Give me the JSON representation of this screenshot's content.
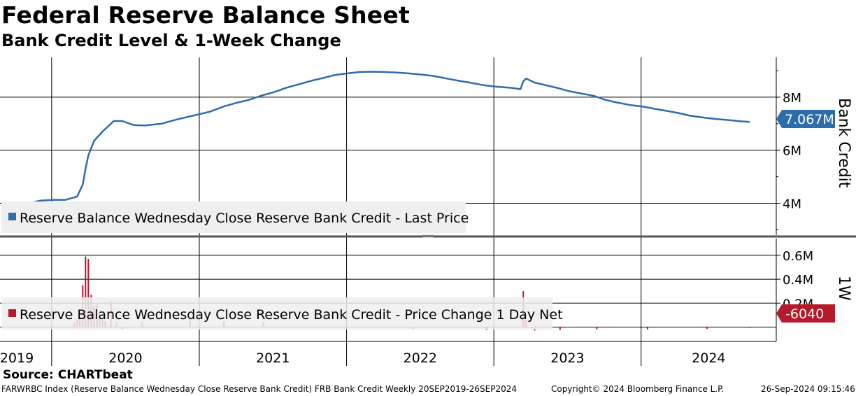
{
  "header": {
    "title": "Federal Reserve Balance Sheet",
    "subtitle": "Bank Credit Level & 1-Week Change"
  },
  "footer": {
    "source": "Source: CHARTbeat",
    "description": "FARWRBC Index (Reserve Balance Wednesday Close Reserve Bank Credit) FRB Bank Credit  Weekly 20SEP2019-26SEP2024",
    "copyright": "Copyright© 2024 Bloomberg Finance L.P.",
    "timestamp": "26-Sep-2024 09:15:46"
  },
  "colors": {
    "level_line": "#2e6dab",
    "change_bars": "#b5192a",
    "legend_box": "#efefef",
    "gridline": "#000000"
  },
  "chart_data": [
    {
      "type": "line",
      "panel": "top",
      "title": "",
      "xlabel": "",
      "ylabel": "Bank Credit",
      "ylim": [
        2800000,
        9500000
      ],
      "yticks": [
        4000000,
        6000000,
        8000000
      ],
      "ytick_labels": [
        "4M",
        "6M",
        "8M"
      ],
      "x_range": [
        "2019-09-20",
        "2024-09-26"
      ],
      "grid": true,
      "legend_placement": "bottom-left",
      "last_value_label": "7.067M",
      "series": [
        {
          "name": "Reserve Balance Wednesday Close Reserve Bank Credit - Last Price",
          "points": [
            [
              "2019-09-20",
              3870000
            ],
            [
              "2019-10-09",
              3940000
            ],
            [
              "2019-11-06",
              4000000
            ],
            [
              "2019-12-04",
              4100000
            ],
            [
              "2020-01-08",
              4130000
            ],
            [
              "2020-02-05",
              4130000
            ],
            [
              "2020-03-04",
              4250000
            ],
            [
              "2020-03-18",
              4700000
            ],
            [
              "2020-03-25",
              5300000
            ],
            [
              "2020-04-01",
              5800000
            ],
            [
              "2020-04-15",
              6350000
            ],
            [
              "2020-05-06",
              6700000
            ],
            [
              "2020-06-03",
              7100000
            ],
            [
              "2020-06-24",
              7100000
            ],
            [
              "2020-07-22",
              6950000
            ],
            [
              "2020-08-19",
              6930000
            ],
            [
              "2020-09-30",
              7000000
            ],
            [
              "2020-11-04",
              7150000
            ],
            [
              "2020-12-16",
              7300000
            ],
            [
              "2021-01-27",
              7450000
            ],
            [
              "2021-03-03",
              7650000
            ],
            [
              "2021-04-07",
              7800000
            ],
            [
              "2021-05-05",
              7900000
            ],
            [
              "2021-06-02",
              8050000
            ],
            [
              "2021-07-07",
              8200000
            ],
            [
              "2021-08-04",
              8350000
            ],
            [
              "2021-09-08",
              8500000
            ],
            [
              "2021-10-06",
              8620000
            ],
            [
              "2021-11-03",
              8720000
            ],
            [
              "2021-12-01",
              8830000
            ],
            [
              "2022-01-05",
              8900000
            ],
            [
              "2022-02-02",
              8950000
            ],
            [
              "2022-03-02",
              8960000
            ],
            [
              "2022-04-06",
              8950000
            ],
            [
              "2022-05-04",
              8930000
            ],
            [
              "2022-06-01",
              8900000
            ],
            [
              "2022-07-06",
              8850000
            ],
            [
              "2022-08-03",
              8800000
            ],
            [
              "2022-09-07",
              8700000
            ],
            [
              "2022-10-05",
              8620000
            ],
            [
              "2022-11-02",
              8550000
            ],
            [
              "2022-12-07",
              8450000
            ],
            [
              "2023-01-04",
              8400000
            ],
            [
              "2023-02-15",
              8350000
            ],
            [
              "2023-03-08",
              8300000
            ],
            [
              "2023-03-15",
              8600000
            ],
            [
              "2023-03-22",
              8700000
            ],
            [
              "2023-04-12",
              8550000
            ],
            [
              "2023-05-10",
              8450000
            ],
            [
              "2023-06-07",
              8350000
            ],
            [
              "2023-07-05",
              8230000
            ],
            [
              "2023-08-02",
              8150000
            ],
            [
              "2023-09-06",
              8050000
            ],
            [
              "2023-10-04",
              7900000
            ],
            [
              "2023-11-01",
              7800000
            ],
            [
              "2023-12-06",
              7700000
            ],
            [
              "2024-01-03",
              7650000
            ],
            [
              "2024-02-07",
              7550000
            ],
            [
              "2024-03-06",
              7480000
            ],
            [
              "2024-04-03",
              7400000
            ],
            [
              "2024-05-01",
              7300000
            ],
            [
              "2024-06-05",
              7230000
            ],
            [
              "2024-07-03",
              7180000
            ],
            [
              "2024-08-07",
              7130000
            ],
            [
              "2024-09-04",
              7090000
            ],
            [
              "2024-09-26",
              7067000
            ]
          ]
        }
      ]
    },
    {
      "type": "bar",
      "panel": "bottom",
      "title": "",
      "xlabel": "",
      "ylabel": "1W",
      "ylim": [
        -120000,
        740000
      ],
      "yticks": [
        200000,
        400000,
        600000
      ],
      "ytick_labels": [
        "0.2M",
        "0.4M",
        "0.6M"
      ],
      "x_range": [
        "2019-09-20",
        "2024-09-26"
      ],
      "grid": true,
      "legend_placement": "bottom-left",
      "last_value_label": "-6040",
      "series": [
        {
          "name": "Reserve Balance Wednesday Close Reserve Bank Credit - Price Change 1 Day Net",
          "points": [
            [
              "2020-02-26",
              40000
            ],
            [
              "2020-03-04",
              60000
            ],
            [
              "2020-03-11",
              90000
            ],
            [
              "2020-03-18",
              350000
            ],
            [
              "2020-03-25",
              590000
            ],
            [
              "2020-04-01",
              570000
            ],
            [
              "2020-04-08",
              270000
            ],
            [
              "2020-04-15",
              180000
            ],
            [
              "2020-04-22",
              200000
            ],
            [
              "2020-04-29",
              110000
            ],
            [
              "2020-05-06",
              60000
            ],
            [
              "2020-05-13",
              50000
            ],
            [
              "2020-05-27",
              220000
            ],
            [
              "2020-06-10",
              40000
            ],
            [
              "2020-06-24",
              -20000
            ],
            [
              "2020-08-12",
              40000
            ],
            [
              "2020-12-09",
              60000
            ],
            [
              "2021-03-03",
              50000
            ],
            [
              "2021-06-09",
              40000
            ],
            [
              "2022-06-15",
              -20000
            ],
            [
              "2022-12-14",
              -25000
            ],
            [
              "2023-03-15",
              300000
            ],
            [
              "2023-03-22",
              60000
            ],
            [
              "2023-04-12",
              -30000
            ],
            [
              "2023-06-14",
              -25000
            ],
            [
              "2023-09-13",
              -20000
            ],
            [
              "2024-01-17",
              -20000
            ],
            [
              "2024-06-12",
              -15000
            ],
            [
              "2024-09-26",
              -6040
            ]
          ]
        }
      ]
    }
  ],
  "x_axis": {
    "year_labels": [
      "2019",
      "2020",
      "2021",
      "2022",
      "2023",
      "2024"
    ]
  }
}
